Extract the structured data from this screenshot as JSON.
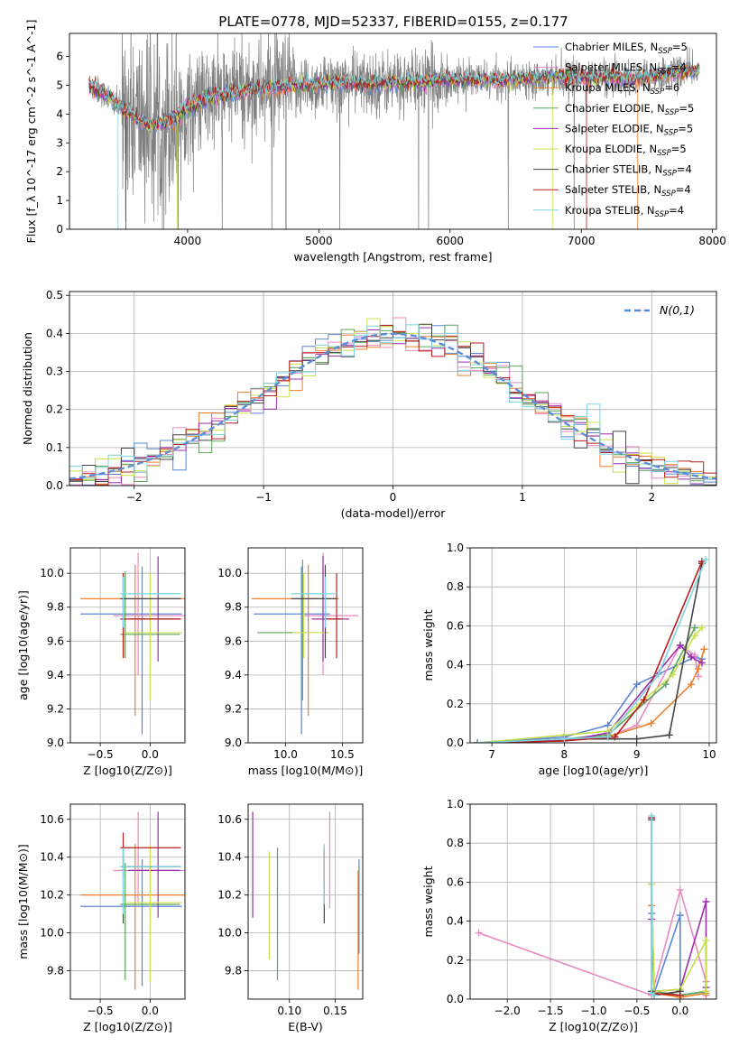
{
  "figure": {
    "title": "PLATE=0778, MJD=52337, FIBERID=0155, z=0.177"
  },
  "colors": {
    "Chabrier MILES": "#5b84d8",
    "Salpeter MILES": "#e98ac1",
    "Kroupa MILES": "#ee7f2e",
    "Chabrier ELODIE": "#5aa65a",
    "Salpeter ELODIE": "#9b2fae",
    "Kroupa ELODIE": "#c9e04a",
    "Chabrier STELIB": "#444444",
    "Salpeter STELIB": "#b81c1c",
    "Kroupa STELIB": "#7fd3e0",
    "data": "#808080",
    "normal": "#5b8fd8"
  },
  "chart_data": [
    {
      "id": "spectrum",
      "type": "line",
      "xlabel": "wavelength [Angstrom, rest frame]",
      "ylabel": "Flux [f_λ 10^-17 erg cm^-2 s^-1 A^-1]",
      "xlim": [
        3100,
        8030
      ],
      "ylim": [
        0,
        6.8
      ],
      "xticks": [
        4000,
        5000,
        6000,
        7000,
        8000
      ],
      "yticks": [
        0,
        1,
        2,
        3,
        4,
        5,
        6
      ],
      "grid": false,
      "legend_position": "top-right",
      "legend": [
        {
          "model": "Chabrier MILES",
          "n_ssp": 5
        },
        {
          "model": "Salpeter MILES",
          "n_ssp": 4
        },
        {
          "model": "Kroupa MILES",
          "n_ssp": 6
        },
        {
          "model": "Chabrier ELODIE",
          "n_ssp": 5
        },
        {
          "model": "Salpeter ELODIE",
          "n_ssp": 5
        },
        {
          "model": "Kroupa ELODIE",
          "n_ssp": 5
        },
        {
          "model": "Chabrier STELIB",
          "n_ssp": 4
        },
        {
          "model": "Salpeter STELIB",
          "n_ssp": 4
        },
        {
          "model": "Kroupa STELIB",
          "n_ssp": 4
        }
      ],
      "continuum": {
        "x": [
          3250,
          3400,
          3500,
          3600,
          3700,
          3800,
          3900,
          4000,
          4200,
          4400,
          4600,
          4800,
          5000,
          5200,
          5400,
          5600,
          5800,
          6000,
          6200,
          6400,
          6600,
          6800,
          7000,
          7200,
          7400,
          7600,
          7800,
          7900
        ],
        "y": [
          5.0,
          4.6,
          4.2,
          3.9,
          3.6,
          3.7,
          3.9,
          4.2,
          4.6,
          4.8,
          4.9,
          5.0,
          5.0,
          5.1,
          5.05,
          5.1,
          5.1,
          5.2,
          5.2,
          5.15,
          5.25,
          5.3,
          5.25,
          5.3,
          5.2,
          5.35,
          5.5,
          5.5
        ]
      },
      "noise_scale": [
        {
          "x": [
            3250,
            3500
          ],
          "sigma": 0.25
        },
        {
          "x": [
            3500,
            3950
          ],
          "sigma": 1.6
        },
        {
          "x": [
            3950,
            4800
          ],
          "sigma": 0.9
        },
        {
          "x": [
            4800,
            6000
          ],
          "sigma": 0.55
        },
        {
          "x": [
            6000,
            7900
          ],
          "sigma": 0.3
        }
      ]
    },
    {
      "id": "residuals",
      "type": "line",
      "xlabel": "(data-model)/error",
      "ylabel": "Normed distribution",
      "xlim": [
        -2.5,
        2.5
      ],
      "ylim": [
        0,
        0.51
      ],
      "xticks": [
        -2,
        -1,
        0,
        1,
        2
      ],
      "yticks": [
        0.0,
        0.1,
        0.2,
        0.3,
        0.4,
        0.5
      ],
      "grid": true,
      "legend_position": "top-right",
      "legend_label": "N(0,1)",
      "bin_width": 0.1
    },
    {
      "id": "Z-age",
      "type": "scatter",
      "xlabel": "Z [log10(Z/Z⊙)]",
      "ylabel": "age  [log10(age/yr)]",
      "xlim": [
        -0.8,
        0.35
      ],
      "ylim": [
        9.0,
        10.15
      ],
      "xticks": [
        -0.5,
        0.0
      ],
      "yticks": [
        9.0,
        9.2,
        9.4,
        9.6,
        9.8,
        10.0
      ],
      "grid": true,
      "points": [
        {
          "model": "Chabrier MILES",
          "x": -0.08,
          "xerr": [
            0.62,
            0.4
          ],
          "y": 9.76,
          "yerr": [
            0.71,
            0.28
          ]
        },
        {
          "model": "Salpeter MILES",
          "x": -0.12,
          "xerr": [
            0.25,
            0.47
          ],
          "y": 9.75,
          "yerr": [
            0.35,
            0.37
          ]
        },
        {
          "model": "Kroupa MILES",
          "x": -0.15,
          "xerr": [
            0.55,
            0.5
          ],
          "y": 9.85,
          "yerr": [
            0.69,
            0.2
          ]
        },
        {
          "model": "Chabrier ELODIE",
          "x": -0.25,
          "xerr": [
            0.05,
            0.55
          ],
          "y": 9.64,
          "yerr": [
            0.14,
            0.37
          ]
        },
        {
          "model": "Salpeter ELODIE",
          "x": 0.08,
          "xerr": [
            0.3,
            0.22
          ],
          "y": 9.73,
          "yerr": [
            0.25,
            0.37
          ]
        },
        {
          "model": "Kroupa ELODIE",
          "x": 0.0,
          "xerr": [
            0.25,
            0.32
          ],
          "y": 9.65,
          "yerr": [
            0.4,
            0.35
          ]
        },
        {
          "model": "Chabrier STELIB",
          "x": -0.27,
          "xerr": [
            0.03,
            0.58
          ],
          "y": 9.85,
          "yerr": [
            0.35,
            0.15
          ]
        },
        {
          "model": "Salpeter STELIB",
          "x": -0.27,
          "xerr": [
            0.03,
            0.58
          ],
          "y": 9.73,
          "yerr": [
            0.23,
            0.27
          ]
        },
        {
          "model": "Kroupa STELIB",
          "x": -0.27,
          "xerr": [
            0.03,
            0.58
          ],
          "y": 9.88,
          "yerr": [
            0.2,
            0.1
          ]
        }
      ]
    },
    {
      "id": "mass-age",
      "type": "scatter",
      "xlabel": "mass [log10(M/M⊙)]",
      "ylabel": "",
      "xlim": [
        9.67,
        10.68
      ],
      "ylim": [
        9.0,
        10.15
      ],
      "xticks": [
        10.0,
        10.5
      ],
      "yticks": [
        9.0,
        9.2,
        9.4,
        9.6,
        9.8,
        10.0
      ],
      "grid": true,
      "points": [
        {
          "model": "Chabrier MILES",
          "x": 10.14,
          "xerr": [
            0.42,
            0.25
          ],
          "y": 9.76,
          "yerr": [
            0.71,
            0.28
          ]
        },
        {
          "model": "Salpeter MILES",
          "x": 10.33,
          "xerr": [
            0.17,
            0.31
          ],
          "y": 9.75,
          "yerr": [
            0.35,
            0.37
          ]
        },
        {
          "model": "Kroupa MILES",
          "x": 10.2,
          "xerr": [
            0.5,
            0.27
          ],
          "y": 9.85,
          "yerr": [
            0.69,
            0.2
          ]
        },
        {
          "model": "Chabrier ELODIE",
          "x": 10.15,
          "xerr": [
            0.4,
            0.22
          ],
          "y": 9.65,
          "yerr": [
            0.4,
            0.43
          ]
        },
        {
          "model": "Salpeter ELODIE",
          "x": 10.33,
          "xerr": [
            0.1,
            0.23
          ],
          "y": 9.73,
          "yerr": [
            0.25,
            0.37
          ]
        },
        {
          "model": "Kroupa ELODIE",
          "x": 10.16,
          "xerr": [
            0.1,
            0.22
          ],
          "y": 9.65,
          "yerr": [
            0.15,
            0.35
          ]
        },
        {
          "model": "Chabrier STELIB",
          "x": 10.35,
          "xerr": [
            0.3,
            0.1
          ],
          "y": 9.85,
          "yerr": [
            0.35,
            0.2
          ]
        },
        {
          "model": "Salpeter STELIB",
          "x": 10.45,
          "xerr": [
            0.1,
            0.05
          ],
          "y": 9.73,
          "yerr": [
            0.23,
            0.27
          ]
        },
        {
          "model": "Kroupa STELIB",
          "x": 10.35,
          "xerr": [
            0.3,
            0.1
          ],
          "y": 9.88,
          "yerr": [
            0.2,
            0.1
          ]
        }
      ]
    },
    {
      "id": "age-weight",
      "type": "line",
      "xlabel": "age  [log10(age/yr)]",
      "ylabel": "mass weight",
      "xlim": [
        6.7,
        10.1
      ],
      "ylim": [
        0,
        1.0
      ],
      "xticks": [
        7,
        8,
        9,
        10
      ],
      "yticks": [
        0.0,
        0.2,
        0.4,
        0.6,
        0.8,
        1.0
      ],
      "grid": true,
      "series": [
        {
          "model": "Chabrier MILES",
          "x": [
            6.8,
            8.0,
            8.6,
            9.0,
            9.8,
            9.9
          ],
          "y": [
            0.0,
            0.03,
            0.09,
            0.3,
            0.44,
            0.43
          ]
        },
        {
          "model": "Salpeter MILES",
          "x": [
            6.8,
            8.0,
            8.6,
            9.0,
            9.6,
            9.8,
            9.85
          ],
          "y": [
            0.0,
            0.01,
            0.03,
            0.09,
            0.5,
            0.45,
            0.34
          ]
        },
        {
          "model": "Kroupa MILES",
          "x": [
            6.8,
            8.0,
            8.6,
            9.2,
            9.75,
            9.85,
            9.93
          ],
          "y": [
            0.0,
            0.01,
            0.03,
            0.1,
            0.3,
            0.38,
            0.48
          ]
        },
        {
          "model": "Chabrier ELODIE",
          "x": [
            6.8,
            8.0,
            8.6,
            9.4,
            9.8
          ],
          "y": [
            0.0,
            0.02,
            0.04,
            0.3,
            0.59
          ]
        },
        {
          "model": "Salpeter ELODIE",
          "x": [
            6.8,
            8.0,
            8.6,
            9.6,
            9.75,
            9.9
          ],
          "y": [
            0.0,
            0.01,
            0.05,
            0.5,
            0.44,
            0.41
          ]
        },
        {
          "model": "Kroupa ELODIE",
          "x": [
            6.8,
            8.0,
            8.6,
            9.5,
            9.8,
            9.9
          ],
          "y": [
            0.0,
            0.04,
            0.06,
            0.35,
            0.55,
            0.59
          ]
        },
        {
          "model": "Chabrier STELIB",
          "x": [
            6.8,
            8.0,
            9.0,
            9.45,
            9.9
          ],
          "y": [
            0.0,
            0.02,
            0.02,
            0.04,
            0.92
          ]
        },
        {
          "model": "Salpeter STELIB",
          "x": [
            6.8,
            8.0,
            8.7,
            9.1,
            9.9
          ],
          "y": [
            0.0,
            0.01,
            0.03,
            0.22,
            0.93
          ]
        },
        {
          "model": "Kroupa STELIB",
          "x": [
            6.8,
            8.0,
            8.6,
            9.3,
            9.95
          ],
          "y": [
            0.0,
            0.02,
            0.03,
            0.35,
            0.94
          ]
        }
      ]
    },
    {
      "id": "Z-mass",
      "type": "scatter",
      "xlabel": "Z [log10(Z/Z⊙)]",
      "ylabel": "mass [log10(M/M⊙)]",
      "xlim": [
        -0.8,
        0.35
      ],
      "ylim": [
        9.65,
        10.68
      ],
      "xticks": [
        -0.5,
        0.0
      ],
      "yticks": [
        9.8,
        10.0,
        10.2,
        10.4,
        10.6
      ],
      "grid": true,
      "points": [
        {
          "model": "Chabrier MILES",
          "x": -0.08,
          "xerr": [
            0.62,
            0.4
          ],
          "y": 10.14,
          "yerr": [
            0.42,
            0.25
          ]
        },
        {
          "model": "Salpeter MILES",
          "x": -0.12,
          "xerr": [
            0.25,
            0.47
          ],
          "y": 10.33,
          "yerr": [
            0.17,
            0.31
          ]
        },
        {
          "model": "Kroupa MILES",
          "x": -0.15,
          "xerr": [
            0.55,
            0.5
          ],
          "y": 10.2,
          "yerr": [
            0.5,
            0.27
          ]
        },
        {
          "model": "Chabrier ELODIE",
          "x": -0.25,
          "xerr": [
            0.05,
            0.55
          ],
          "y": 10.15,
          "yerr": [
            0.4,
            0.22
          ]
        },
        {
          "model": "Salpeter ELODIE",
          "x": 0.08,
          "xerr": [
            0.3,
            0.22
          ],
          "y": 10.33,
          "yerr": [
            0.25,
            0.31
          ]
        },
        {
          "model": "Kroupa ELODIE",
          "x": 0.0,
          "xerr": [
            0.25,
            0.32
          ],
          "y": 10.16,
          "yerr": [
            0.42,
            0.3
          ]
        },
        {
          "model": "Chabrier STELIB",
          "x": -0.27,
          "xerr": [
            0.03,
            0.58
          ],
          "y": 10.35,
          "yerr": [
            0.3,
            0.1
          ]
        },
        {
          "model": "Salpeter STELIB",
          "x": -0.27,
          "xerr": [
            0.03,
            0.58
          ],
          "y": 10.45,
          "yerr": [
            0.15,
            0.08
          ]
        },
        {
          "model": "Kroupa STELIB",
          "x": -0.27,
          "xerr": [
            0.03,
            0.58
          ],
          "y": 10.35,
          "yerr": [
            0.25,
            0.1
          ]
        }
      ]
    },
    {
      "id": "EBV-mass",
      "type": "scatter",
      "xlabel": "E(B-V)",
      "ylabel": "",
      "xlim": [
        0.055,
        0.18
      ],
      "ylim": [
        9.65,
        10.68
      ],
      "xticks": [
        0.1,
        0.15
      ],
      "yticks": [
        9.8,
        10.0,
        10.2,
        10.4,
        10.6
      ],
      "grid": true,
      "points": [
        {
          "model": "Chabrier MILES",
          "x": 0.176,
          "y": 10.14,
          "yerr": [
            0.25,
            0.25
          ]
        },
        {
          "model": "Salpeter MILES",
          "x": 0.144,
          "y": 10.33,
          "yerr": [
            0.2,
            0.31
          ]
        },
        {
          "model": "Kroupa MILES",
          "x": 0.175,
          "y": 10.0,
          "yerr": [
            0.3,
            0.33
          ]
        },
        {
          "model": "Chabrier ELODIE",
          "x": 0.087,
          "y": 10.15,
          "yerr": [
            0.4,
            0.3
          ]
        },
        {
          "model": "Salpeter ELODIE",
          "x": 0.06,
          "y": 10.33,
          "yerr": [
            0.25,
            0.31
          ]
        },
        {
          "model": "Kroupa ELODIE",
          "x": 0.078,
          "y": 10.16,
          "yerr": [
            0.3,
            0.27
          ]
        },
        {
          "model": "Chabrier STELIB",
          "x": 0.138,
          "y": 10.35,
          "yerr": [
            0.3,
            0.1
          ]
        },
        {
          "model": "Salpeter STELIB",
          "x": 0.138,
          "y": 10.35,
          "yerr": [
            0.1,
            0.08
          ]
        },
        {
          "model": "Kroupa STELIB",
          "x": 0.138,
          "y": 10.35,
          "yerr": [
            0.2,
            0.12
          ]
        }
      ]
    },
    {
      "id": "Z-weight",
      "type": "line",
      "xlabel": "Z [log10(Z/Z⊙)]",
      "ylabel": "mass weight",
      "xlim": [
        -2.43,
        0.42
      ],
      "ylim": [
        0,
        1.0
      ],
      "xticks": [
        -2.0,
        -1.5,
        -1.0,
        -0.5,
        0.0
      ],
      "yticks": [
        0.0,
        0.2,
        0.4,
        0.6,
        0.8,
        1.0
      ],
      "grid": true,
      "series": [
        {
          "model": "Chabrier MILES",
          "x": [
            -0.33,
            -0.3,
            0.0,
            0.0,
            0.3
          ],
          "y": [
            0.44,
            0.03,
            0.43,
            0.02,
            0.04
          ]
        },
        {
          "model": "Salpeter MILES",
          "x": [
            -2.33,
            -0.33,
            0.0,
            0.3,
            0.3
          ],
          "y": [
            0.34,
            0.02,
            0.56,
            0.09,
            0.02
          ]
        },
        {
          "model": "Kroupa MILES",
          "x": [
            -0.33,
            -0.3,
            0.0,
            0.3
          ],
          "y": [
            0.48,
            0.03,
            0.01,
            0.03
          ]
        },
        {
          "model": "Chabrier ELODIE",
          "x": [
            -0.33,
            -0.3,
            0.0,
            0.3
          ],
          "y": [
            0.59,
            0.04,
            0.02,
            0.04
          ]
        },
        {
          "model": "Salpeter ELODIE",
          "x": [
            -0.33,
            -0.3,
            0.0,
            0.3,
            0.3
          ],
          "y": [
            0.41,
            0.04,
            0.05,
            0.5,
            0.06
          ]
        },
        {
          "model": "Kroupa ELODIE",
          "x": [
            -0.33,
            -0.3,
            0.0,
            0.3,
            0.3
          ],
          "y": [
            0.59,
            0.04,
            0.05,
            0.3,
            0.04
          ]
        },
        {
          "model": "Chabrier STELIB",
          "x": [
            -0.33,
            -0.33,
            -0.3,
            0.0
          ],
          "y": [
            0.92,
            0.04,
            0.02,
            0.04
          ]
        },
        {
          "model": "Salpeter STELIB",
          "x": [
            -0.33,
            -0.33,
            0.0
          ],
          "y": [
            0.93,
            0.03,
            0.02
          ]
        },
        {
          "model": "Kroupa STELIB",
          "x": [
            -0.33,
            -0.33,
            -0.3
          ],
          "y": [
            0.94,
            0.03,
            0.02
          ]
        }
      ]
    }
  ]
}
